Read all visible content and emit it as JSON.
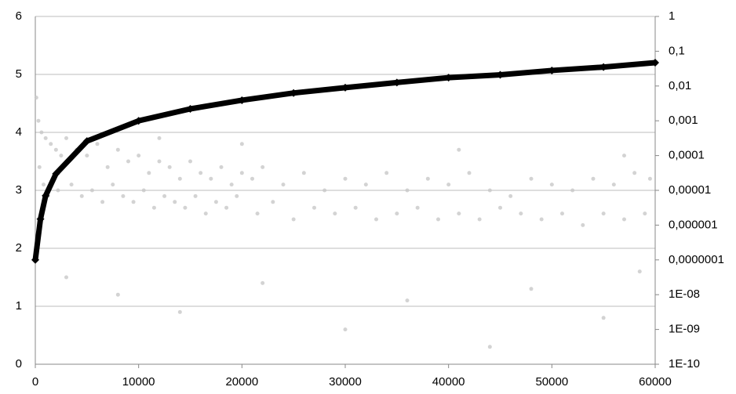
{
  "chart_data": {
    "type": "scatter",
    "xlim": [
      0,
      60000
    ],
    "xticks": [
      0,
      10000,
      20000,
      30000,
      40000,
      50000,
      60000
    ],
    "ylim": [
      0,
      6
    ],
    "yticks": [
      0,
      1,
      2,
      3,
      4,
      5,
      6
    ],
    "y2lim": [
      1e-10,
      1
    ],
    "y2scale": "log",
    "y2ticks": [
      1,
      {
        "value": 0.1,
        "label": "0,1"
      },
      {
        "value": 0.01,
        "label": "0,01"
      },
      {
        "value": 0.001,
        "label": "0,001"
      },
      {
        "value": 0.0001,
        "label": "0,0001"
      },
      {
        "value": 1e-05,
        "label": "0,00001"
      },
      {
        "value": 1e-06,
        "label": "0,000001"
      },
      {
        "value": 1e-07,
        "label": "0,0000001"
      },
      {
        "value": 1e-08,
        "label": "1E-08"
      },
      {
        "value": 1e-09,
        "label": "1E-09"
      },
      {
        "value": 1e-10,
        "label": "1E-10"
      }
    ],
    "grid": true,
    "series": [
      {
        "color": "#c8c8c8",
        "x": [
          100,
          300,
          600,
          1000,
          1500,
          2000,
          2500,
          3000,
          4000,
          5000,
          6000,
          7000,
          8000,
          9000,
          10000,
          11000,
          12000,
          13000,
          14000,
          15000,
          16000,
          17000,
          18000,
          19000,
          20000,
          21000,
          22000,
          24000,
          26000,
          28000,
          30000,
          32000,
          34000,
          36000,
          38000,
          40000,
          42000,
          44000,
          46000,
          48000,
          50000,
          52000,
          54000,
          56000,
          58000,
          59500,
          400,
          800,
          1200,
          2200,
          3500,
          4500,
          5500,
          6500,
          7500,
          8500,
          9500,
          10500,
          11500,
          12500,
          13500,
          14500,
          15500,
          16500,
          17500,
          18500,
          19500,
          21500,
          23000,
          25000,
          27000,
          29000,
          31000,
          33000,
          35000,
          37000,
          39000,
          41000,
          43000,
          45000,
          47000,
          49000,
          51000,
          53000,
          55000,
          57000,
          59000,
          3000,
          8000,
          14000,
          22000,
          30000,
          36000,
          44000,
          48000,
          55000,
          58500,
          12000,
          20000,
          41000,
          57000
        ],
        "values": [
          4.6,
          4.2,
          4.0,
          3.9,
          3.8,
          3.7,
          3.6,
          3.9,
          3.7,
          3.6,
          3.8,
          3.4,
          3.7,
          3.5,
          3.6,
          3.3,
          3.5,
          3.4,
          3.2,
          3.5,
          3.3,
          3.2,
          3.4,
          3.1,
          3.3,
          3.2,
          3.4,
          3.1,
          3.3,
          3.0,
          3.2,
          3.1,
          3.3,
          3.0,
          3.2,
          3.1,
          3.3,
          3.0,
          2.9,
          3.2,
          3.1,
          3.0,
          3.2,
          3.1,
          3.3,
          3.2,
          3.4,
          3.1,
          2.9,
          3.0,
          3.1,
          2.9,
          3.0,
          2.8,
          3.1,
          2.9,
          2.8,
          3.0,
          2.7,
          2.9,
          2.8,
          2.7,
          2.9,
          2.6,
          2.8,
          2.7,
          2.9,
          2.6,
          2.8,
          2.5,
          2.7,
          2.6,
          2.7,
          2.5,
          2.6,
          2.7,
          2.5,
          2.6,
          2.5,
          2.7,
          2.6,
          2.5,
          2.6,
          2.4,
          2.6,
          2.5,
          2.6,
          1.5,
          1.2,
          0.9,
          1.4,
          0.6,
          1.1,
          0.3,
          1.3,
          0.8,
          1.6,
          3.9,
          3.8,
          3.7,
          3.6
        ]
      },
      {
        "color": "#000000",
        "axis": "y2",
        "x": [
          0,
          500,
          1000,
          2000,
          5000,
          10000,
          15000,
          20000,
          25000,
          30000,
          35000,
          40000,
          45000,
          50000,
          55000,
          60000
        ],
        "values": [
          1e-07,
          1.5e-06,
          7e-06,
          3e-05,
          0.00026,
          0.001,
          0.0022,
          0.0039,
          0.0063,
          0.009,
          0.0126,
          0.0174,
          0.021,
          0.028,
          0.035,
          0.047
        ]
      }
    ]
  }
}
